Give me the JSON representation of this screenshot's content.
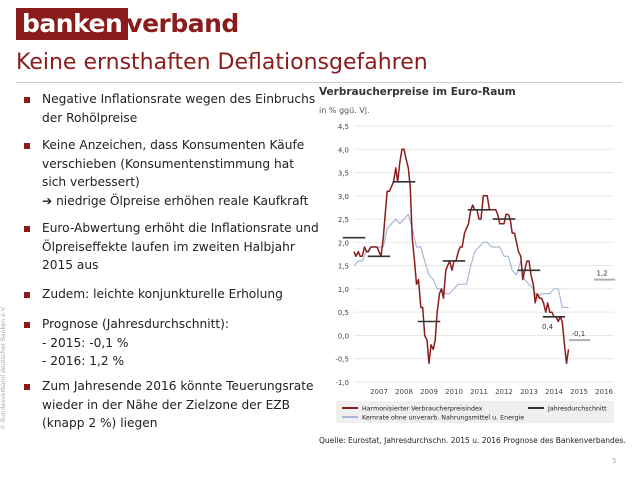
{
  "header": {
    "logo_bold": "banken",
    "logo_rest": "verband",
    "title": "Keine ernsthaften Deflationsgefahren",
    "copyright": "© Bundesverband deutscher Banken e.V.",
    "page_number": "5"
  },
  "bullets": [
    {
      "lines": [
        "Negative Inflationsrate wegen des Einbruchs",
        "der Rohölpreise"
      ]
    },
    {
      "lines": [
        "Keine Anzeichen, dass Konsumenten Käufe",
        "verschieben (Konsumentenstimmung hat",
        "sich verbessert)",
        "➔ niedrige Ölpreise erhöhen reale Kaufkraft"
      ]
    },
    {
      "lines": [
        "Euro-Abwertung erhöht die Inflationsrate und",
        "Ölpreiseffekte laufen im zweiten Halbjahr",
        "2015 aus"
      ]
    },
    {
      "lines": [
        "Zudem: leichte konjunkturelle Erholung"
      ]
    },
    {
      "lines": [
        "Prognose (Jahresdurchschnitt):",
        "- 2015: -0,1 %",
        "- 2016: 1,2 %"
      ]
    },
    {
      "lines": [
        "Zum Jahresende 2016 könnte Teuerungsrate",
        "wieder in der Nähe der Zielzone der EZB",
        "(knapp 2 %) liegen"
      ]
    }
  ],
  "chart_data": {
    "type": "line",
    "title": "Verbraucherpreise im Euro-Raum",
    "subtitle": "in % ggü. Vj.",
    "source": "Quelle: Eurostat, Jahresdurchschn. 2015 u. 2016 Prognose des Bankenverbandes.",
    "ylim": [
      -1.0,
      4.5
    ],
    "xlim": [
      2006.5,
      2016.9
    ],
    "yticks": [
      "4,5",
      "4,0",
      "3,5",
      "3,0",
      "2,5",
      "2,0",
      "1,5",
      "1,0",
      "0,5",
      "0,0",
      "-0,5",
      "-1,0"
    ],
    "ytick_values": [
      4.5,
      4.0,
      3.5,
      3.0,
      2.5,
      2.0,
      1.5,
      1.0,
      0.5,
      0.0,
      -0.5,
      -1.0
    ],
    "xticks": [
      "2007",
      "2008",
      "2009",
      "2010",
      "2011",
      "2012",
      "2013",
      "2014",
      "2015",
      "2016"
    ],
    "grid": "horizontal",
    "legend_position": "bottom",
    "colors": {
      "hicp": "#8b1c1c",
      "core": "#a6b9d6",
      "annual": "#333333",
      "forecast": "#b0b0b0",
      "grid": "#e6e6e6",
      "legend_bg": "#efefef"
    },
    "series": [
      {
        "name": "Harmonisierter Verbraucherpreisindex",
        "x": [
          2006.5,
          2006.58,
          2006.67,
          2006.75,
          2006.83,
          2006.92,
          2007.0,
          2007.08,
          2007.17,
          2007.25,
          2007.33,
          2007.42,
          2007.5,
          2007.58,
          2007.67,
          2007.75,
          2007.83,
          2007.92,
          2008.0,
          2008.08,
          2008.17,
          2008.25,
          2008.33,
          2008.42,
          2008.5,
          2008.58,
          2008.67,
          2008.75,
          2008.83,
          2008.92,
          2009.0,
          2009.08,
          2009.17,
          2009.25,
          2009.33,
          2009.42,
          2009.5,
          2009.58,
          2009.67,
          2009.75,
          2009.83,
          2009.92,
          2010.0,
          2010.08,
          2010.17,
          2010.25,
          2010.33,
          2010.42,
          2010.5,
          2010.58,
          2010.67,
          2010.75,
          2010.83,
          2010.92,
          2011.0,
          2011.08,
          2011.17,
          2011.25,
          2011.33,
          2011.42,
          2011.5,
          2011.58,
          2011.67,
          2011.75,
          2011.83,
          2011.92,
          2012.0,
          2012.08,
          2012.17,
          2012.25,
          2012.33,
          2012.42,
          2012.5,
          2012.58,
          2012.67,
          2012.75,
          2012.83,
          2012.92,
          2013.0,
          2013.08,
          2013.17,
          2013.25,
          2013.33,
          2013.42,
          2013.5,
          2013.58,
          2013.67,
          2013.75,
          2013.83,
          2013.92,
          2014.0,
          2014.08,
          2014.17,
          2014.25,
          2014.33,
          2014.42,
          2014.5,
          2014.58,
          2014.67,
          2014.75,
          2014.83,
          2014.92,
          2015.0,
          2015.08
        ],
        "values": [
          1.8,
          1.7,
          1.8,
          1.7,
          1.7,
          1.9,
          1.8,
          1.8,
          1.9,
          1.9,
          1.9,
          1.9,
          1.8,
          1.7,
          2.1,
          2.6,
          3.1,
          3.1,
          3.2,
          3.3,
          3.6,
          3.3,
          3.7,
          4.0,
          4.0,
          3.8,
          3.6,
          3.2,
          2.1,
          1.6,
          1.1,
          1.2,
          0.6,
          0.6,
          0.0,
          -0.1,
          -0.6,
          -0.2,
          -0.3,
          -0.1,
          0.5,
          0.9,
          1.0,
          0.8,
          1.4,
          1.5,
          1.6,
          1.4,
          1.6,
          1.6,
          1.8,
          1.9,
          1.9,
          2.2,
          2.3,
          2.4,
          2.7,
          2.8,
          2.7,
          2.7,
          2.5,
          2.5,
          3.0,
          3.0,
          3.0,
          2.7,
          2.7,
          2.7,
          2.7,
          2.6,
          2.4,
          2.4,
          2.4,
          2.6,
          2.6,
          2.5,
          2.2,
          2.2,
          2.0,
          1.8,
          1.7,
          1.2,
          1.4,
          1.6,
          1.6,
          1.3,
          1.1,
          0.7,
          0.9,
          0.8,
          0.8,
          0.7,
          0.5,
          0.7,
          0.5,
          0.5,
          0.4,
          0.4,
          0.3,
          0.4,
          0.3,
          -0.2,
          -0.6,
          -0.3
        ]
      },
      {
        "name": "Kernrate ohne unverarb. Nahrungsmittel u. Energie",
        "x": [
          2006.5,
          2006.67,
          2006.83,
          2007.0,
          2007.17,
          2007.33,
          2007.5,
          2007.67,
          2007.83,
          2008.0,
          2008.17,
          2008.33,
          2008.5,
          2008.67,
          2008.83,
          2009.0,
          2009.17,
          2009.33,
          2009.5,
          2009.67,
          2009.83,
          2010.0,
          2010.17,
          2010.33,
          2010.5,
          2010.67,
          2010.83,
          2011.0,
          2011.17,
          2011.33,
          2011.5,
          2011.67,
          2011.83,
          2012.0,
          2012.17,
          2012.33,
          2012.5,
          2012.67,
          2012.83,
          2013.0,
          2013.17,
          2013.33,
          2013.5,
          2013.67,
          2013.83,
          2014.0,
          2014.17,
          2014.33,
          2014.5,
          2014.67,
          2014.83,
          2015.0,
          2015.08
        ],
        "values": [
          1.5,
          1.6,
          1.6,
          1.8,
          1.9,
          1.9,
          1.9,
          1.9,
          2.3,
          2.4,
          2.5,
          2.4,
          2.5,
          2.6,
          2.3,
          1.9,
          1.9,
          1.6,
          1.3,
          1.2,
          1.0,
          1.0,
          0.9,
          0.9,
          1.0,
          1.1,
          1.1,
          1.1,
          1.5,
          1.8,
          1.9,
          2.0,
          2.0,
          1.9,
          1.9,
          1.9,
          1.7,
          1.7,
          1.4,
          1.3,
          1.6,
          1.2,
          1.1,
          1.0,
          0.8,
          0.9,
          0.9,
          0.9,
          1.0,
          1.0,
          0.6,
          0.6,
          0.6
        ]
      }
    ],
    "annual_averages": {
      "name": "Jahresdurchschnitt",
      "years": [
        2006,
        2007,
        2008,
        2009,
        2010,
        2011,
        2012,
        2013,
        2014
      ],
      "values": [
        2.1,
        1.7,
        3.3,
        0.3,
        1.6,
        2.7,
        2.5,
        1.4,
        0.4
      ],
      "label_2014": "0,4"
    },
    "forecasts": [
      {
        "year": 2015,
        "value": -0.1,
        "label": "-0,1"
      },
      {
        "year": 2016,
        "value": 1.2,
        "label": "1,2"
      }
    ]
  }
}
